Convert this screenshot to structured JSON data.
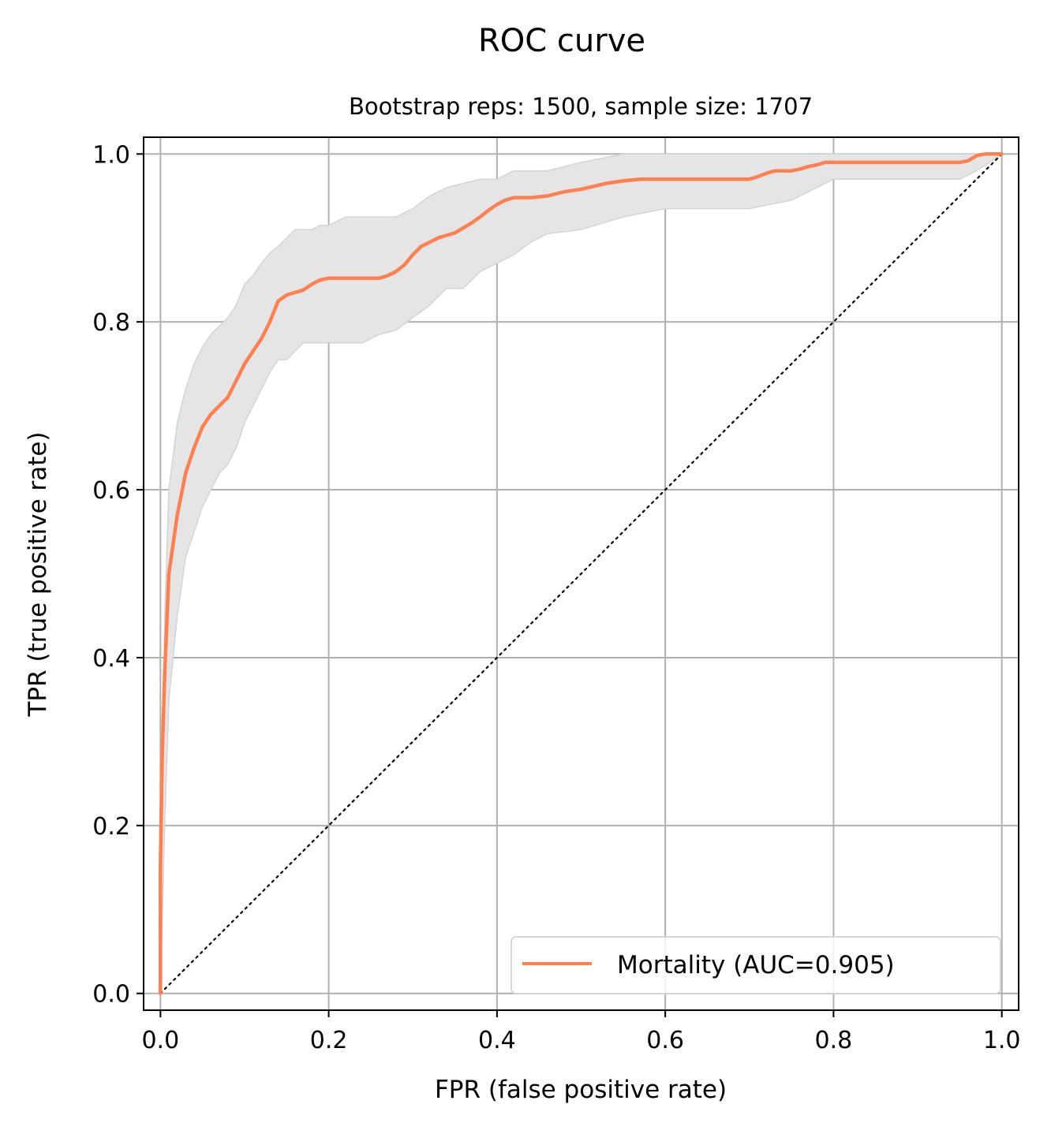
{
  "chart_data": {
    "type": "line",
    "title": "ROC curve",
    "subtitle": "Bootstrap reps: 1500, sample size: 1707",
    "xlabel": "FPR (false positive rate)",
    "ylabel": "TPR (true positive rate)",
    "xlim": [
      -0.02,
      1.02
    ],
    "ylim": [
      -0.02,
      1.02
    ],
    "xticks": [
      "0.0",
      "0.2",
      "0.4",
      "0.6",
      "0.8",
      "1.0"
    ],
    "yticks": [
      "0.0",
      "0.2",
      "0.4",
      "0.6",
      "0.8",
      "1.0"
    ],
    "grid": true,
    "legend_position": "lower-right",
    "series": [
      {
        "name": "Mortality (AUC=0.905)",
        "color": "#ff7f50",
        "x": [
          0.0,
          0.0,
          0.002,
          0.005,
          0.01,
          0.02,
          0.03,
          0.04,
          0.05,
          0.06,
          0.07,
          0.08,
          0.09,
          0.1,
          0.12,
          0.13,
          0.14,
          0.15,
          0.16,
          0.17,
          0.18,
          0.19,
          0.2,
          0.21,
          0.22,
          0.24,
          0.26,
          0.27,
          0.28,
          0.29,
          0.3,
          0.31,
          0.32,
          0.33,
          0.34,
          0.35,
          0.36,
          0.37,
          0.38,
          0.39,
          0.4,
          0.41,
          0.42,
          0.43,
          0.44,
          0.46,
          0.48,
          0.5,
          0.53,
          0.55,
          0.57,
          0.6,
          0.65,
          0.7,
          0.71,
          0.72,
          0.73,
          0.75,
          0.76,
          0.77,
          0.78,
          0.79,
          0.8,
          0.85,
          0.9,
          0.95,
          0.96,
          0.97,
          0.98,
          1.0
        ],
        "y": [
          0.0,
          0.15,
          0.28,
          0.38,
          0.5,
          0.57,
          0.62,
          0.65,
          0.675,
          0.69,
          0.7,
          0.71,
          0.73,
          0.75,
          0.78,
          0.8,
          0.825,
          0.832,
          0.835,
          0.838,
          0.845,
          0.85,
          0.852,
          0.852,
          0.852,
          0.852,
          0.852,
          0.855,
          0.86,
          0.868,
          0.88,
          0.89,
          0.895,
          0.9,
          0.903,
          0.906,
          0.912,
          0.918,
          0.925,
          0.933,
          0.94,
          0.945,
          0.948,
          0.948,
          0.948,
          0.95,
          0.955,
          0.958,
          0.965,
          0.968,
          0.97,
          0.97,
          0.97,
          0.97,
          0.973,
          0.977,
          0.98,
          0.98,
          0.982,
          0.985,
          0.987,
          0.99,
          0.99,
          0.99,
          0.99,
          0.99,
          0.992,
          0.998,
          1.0,
          1.0
        ]
      }
    ],
    "confidence_band": {
      "color": "#e5e5e5",
      "x": [
        0.0,
        0.005,
        0.01,
        0.02,
        0.03,
        0.04,
        0.05,
        0.06,
        0.07,
        0.08,
        0.09,
        0.1,
        0.11,
        0.12,
        0.13,
        0.14,
        0.15,
        0.16,
        0.17,
        0.18,
        0.19,
        0.2,
        0.22,
        0.24,
        0.26,
        0.28,
        0.3,
        0.32,
        0.34,
        0.36,
        0.38,
        0.4,
        0.42,
        0.44,
        0.46,
        0.5,
        0.55,
        0.6,
        0.65,
        0.7,
        0.75,
        0.8,
        0.85,
        0.9,
        0.95,
        0.97,
        1.0
      ],
      "lower": [
        0.0,
        0.2,
        0.35,
        0.45,
        0.52,
        0.55,
        0.58,
        0.6,
        0.62,
        0.63,
        0.65,
        0.68,
        0.7,
        0.72,
        0.74,
        0.755,
        0.755,
        0.765,
        0.775,
        0.775,
        0.775,
        0.775,
        0.775,
        0.775,
        0.785,
        0.79,
        0.805,
        0.82,
        0.84,
        0.84,
        0.86,
        0.87,
        0.88,
        0.895,
        0.905,
        0.91,
        0.925,
        0.935,
        0.935,
        0.935,
        0.945,
        0.97,
        0.97,
        0.97,
        0.97,
        0.98,
        1.0
      ],
      "upper": [
        0.0,
        0.45,
        0.6,
        0.68,
        0.72,
        0.75,
        0.77,
        0.785,
        0.795,
        0.805,
        0.82,
        0.845,
        0.855,
        0.87,
        0.882,
        0.89,
        0.9,
        0.91,
        0.91,
        0.91,
        0.915,
        0.915,
        0.925,
        0.925,
        0.925,
        0.925,
        0.935,
        0.95,
        0.96,
        0.965,
        0.97,
        0.97,
        0.98,
        0.98,
        0.98,
        0.99,
        1.0,
        1.0,
        1.0,
        1.0,
        1.0,
        1.0,
        1.0,
        1.0,
        1.0,
        1.0,
        1.0
      ]
    },
    "reference_line": {
      "style": "dotted",
      "color": "#000000",
      "x": [
        0,
        1
      ],
      "y": [
        0,
        1
      ]
    }
  }
}
